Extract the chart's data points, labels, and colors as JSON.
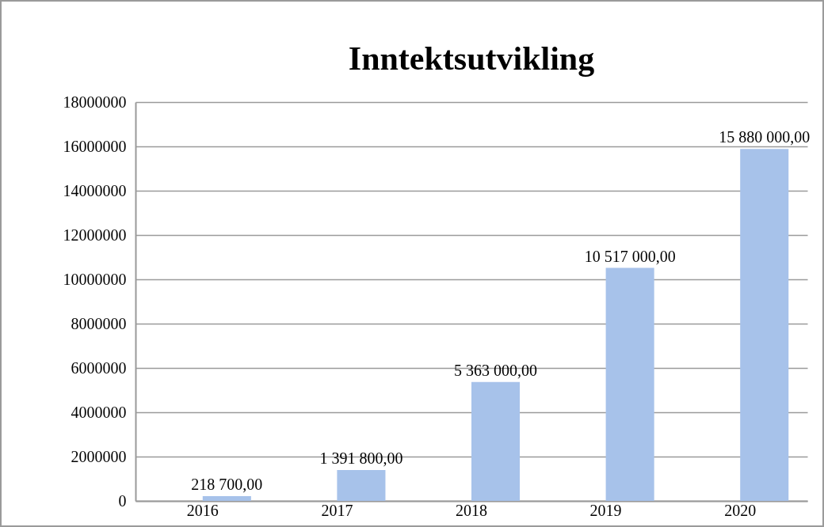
{
  "chart_data": {
    "type": "bar",
    "title": "Inntektsutvikling",
    "categories": [
      "2016",
      "2017",
      "2018",
      "2019",
      "2020"
    ],
    "series": [
      {
        "color": "#4f81bd",
        "values": [
          0,
          0,
          0,
          0,
          0
        ]
      },
      {
        "color": "#a7c2ea",
        "values": [
          218700,
          1391800,
          5363000,
          10517000,
          15880000
        ],
        "value_labels": [
          "218 700,00",
          "1 391 800,00",
          "5 363 000,00",
          "10 517 000,00",
          "15 880 000,00"
        ]
      }
    ],
    "ylim": [
      0,
      18000000
    ],
    "yticks": [
      0,
      2000000,
      4000000,
      6000000,
      8000000,
      10000000,
      12000000,
      14000000,
      16000000,
      18000000
    ],
    "grid": "y"
  }
}
